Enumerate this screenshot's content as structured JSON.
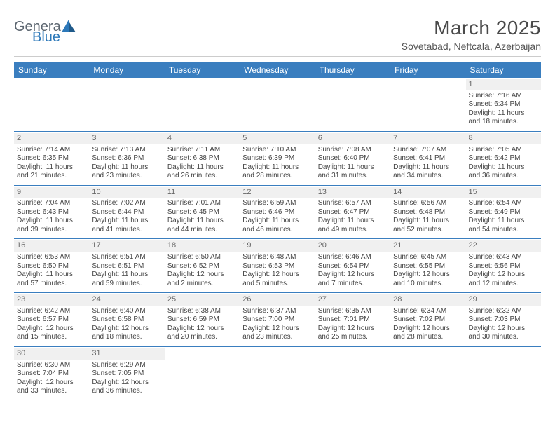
{
  "logo": {
    "part1": "Genera",
    "part2": "Blue"
  },
  "title": "March 2025",
  "subtitle": "Sovetabad, Neftcala, Azerbaijan",
  "colors": {
    "header_bg": "#3a7ebf",
    "header_text": "#ffffff",
    "row_border": "#3a7ebf",
    "daynum_bg": "#f0f0f0",
    "logo_gray": "#5c6670",
    "logo_blue": "#2c78b9"
  },
  "weekdays": [
    "Sunday",
    "Monday",
    "Tuesday",
    "Wednesday",
    "Thursday",
    "Friday",
    "Saturday"
  ],
  "weeks": [
    [
      {
        "n": "",
        "lines": []
      },
      {
        "n": "",
        "lines": []
      },
      {
        "n": "",
        "lines": []
      },
      {
        "n": "",
        "lines": []
      },
      {
        "n": "",
        "lines": []
      },
      {
        "n": "",
        "lines": []
      },
      {
        "n": "1",
        "lines": [
          "Sunrise: 7:16 AM",
          "Sunset: 6:34 PM",
          "Daylight: 11 hours",
          "and 18 minutes."
        ]
      }
    ],
    [
      {
        "n": "2",
        "lines": [
          "Sunrise: 7:14 AM",
          "Sunset: 6:35 PM",
          "Daylight: 11 hours",
          "and 21 minutes."
        ]
      },
      {
        "n": "3",
        "lines": [
          "Sunrise: 7:13 AM",
          "Sunset: 6:36 PM",
          "Daylight: 11 hours",
          "and 23 minutes."
        ]
      },
      {
        "n": "4",
        "lines": [
          "Sunrise: 7:11 AM",
          "Sunset: 6:38 PM",
          "Daylight: 11 hours",
          "and 26 minutes."
        ]
      },
      {
        "n": "5",
        "lines": [
          "Sunrise: 7:10 AM",
          "Sunset: 6:39 PM",
          "Daylight: 11 hours",
          "and 28 minutes."
        ]
      },
      {
        "n": "6",
        "lines": [
          "Sunrise: 7:08 AM",
          "Sunset: 6:40 PM",
          "Daylight: 11 hours",
          "and 31 minutes."
        ]
      },
      {
        "n": "7",
        "lines": [
          "Sunrise: 7:07 AM",
          "Sunset: 6:41 PM",
          "Daylight: 11 hours",
          "and 34 minutes."
        ]
      },
      {
        "n": "8",
        "lines": [
          "Sunrise: 7:05 AM",
          "Sunset: 6:42 PM",
          "Daylight: 11 hours",
          "and 36 minutes."
        ]
      }
    ],
    [
      {
        "n": "9",
        "lines": [
          "Sunrise: 7:04 AM",
          "Sunset: 6:43 PM",
          "Daylight: 11 hours",
          "and 39 minutes."
        ]
      },
      {
        "n": "10",
        "lines": [
          "Sunrise: 7:02 AM",
          "Sunset: 6:44 PM",
          "Daylight: 11 hours",
          "and 41 minutes."
        ]
      },
      {
        "n": "11",
        "lines": [
          "Sunrise: 7:01 AM",
          "Sunset: 6:45 PM",
          "Daylight: 11 hours",
          "and 44 minutes."
        ]
      },
      {
        "n": "12",
        "lines": [
          "Sunrise: 6:59 AM",
          "Sunset: 6:46 PM",
          "Daylight: 11 hours",
          "and 46 minutes."
        ]
      },
      {
        "n": "13",
        "lines": [
          "Sunrise: 6:57 AM",
          "Sunset: 6:47 PM",
          "Daylight: 11 hours",
          "and 49 minutes."
        ]
      },
      {
        "n": "14",
        "lines": [
          "Sunrise: 6:56 AM",
          "Sunset: 6:48 PM",
          "Daylight: 11 hours",
          "and 52 minutes."
        ]
      },
      {
        "n": "15",
        "lines": [
          "Sunrise: 6:54 AM",
          "Sunset: 6:49 PM",
          "Daylight: 11 hours",
          "and 54 minutes."
        ]
      }
    ],
    [
      {
        "n": "16",
        "lines": [
          "Sunrise: 6:53 AM",
          "Sunset: 6:50 PM",
          "Daylight: 11 hours",
          "and 57 minutes."
        ]
      },
      {
        "n": "17",
        "lines": [
          "Sunrise: 6:51 AM",
          "Sunset: 6:51 PM",
          "Daylight: 11 hours",
          "and 59 minutes."
        ]
      },
      {
        "n": "18",
        "lines": [
          "Sunrise: 6:50 AM",
          "Sunset: 6:52 PM",
          "Daylight: 12 hours",
          "and 2 minutes."
        ]
      },
      {
        "n": "19",
        "lines": [
          "Sunrise: 6:48 AM",
          "Sunset: 6:53 PM",
          "Daylight: 12 hours",
          "and 5 minutes."
        ]
      },
      {
        "n": "20",
        "lines": [
          "Sunrise: 6:46 AM",
          "Sunset: 6:54 PM",
          "Daylight: 12 hours",
          "and 7 minutes."
        ]
      },
      {
        "n": "21",
        "lines": [
          "Sunrise: 6:45 AM",
          "Sunset: 6:55 PM",
          "Daylight: 12 hours",
          "and 10 minutes."
        ]
      },
      {
        "n": "22",
        "lines": [
          "Sunrise: 6:43 AM",
          "Sunset: 6:56 PM",
          "Daylight: 12 hours",
          "and 12 minutes."
        ]
      }
    ],
    [
      {
        "n": "23",
        "lines": [
          "Sunrise: 6:42 AM",
          "Sunset: 6:57 PM",
          "Daylight: 12 hours",
          "and 15 minutes."
        ]
      },
      {
        "n": "24",
        "lines": [
          "Sunrise: 6:40 AM",
          "Sunset: 6:58 PM",
          "Daylight: 12 hours",
          "and 18 minutes."
        ]
      },
      {
        "n": "25",
        "lines": [
          "Sunrise: 6:38 AM",
          "Sunset: 6:59 PM",
          "Daylight: 12 hours",
          "and 20 minutes."
        ]
      },
      {
        "n": "26",
        "lines": [
          "Sunrise: 6:37 AM",
          "Sunset: 7:00 PM",
          "Daylight: 12 hours",
          "and 23 minutes."
        ]
      },
      {
        "n": "27",
        "lines": [
          "Sunrise: 6:35 AM",
          "Sunset: 7:01 PM",
          "Daylight: 12 hours",
          "and 25 minutes."
        ]
      },
      {
        "n": "28",
        "lines": [
          "Sunrise: 6:34 AM",
          "Sunset: 7:02 PM",
          "Daylight: 12 hours",
          "and 28 minutes."
        ]
      },
      {
        "n": "29",
        "lines": [
          "Sunrise: 6:32 AM",
          "Sunset: 7:03 PM",
          "Daylight: 12 hours",
          "and 30 minutes."
        ]
      }
    ],
    [
      {
        "n": "30",
        "lines": [
          "Sunrise: 6:30 AM",
          "Sunset: 7:04 PM",
          "Daylight: 12 hours",
          "and 33 minutes."
        ]
      },
      {
        "n": "31",
        "lines": [
          "Sunrise: 6:29 AM",
          "Sunset: 7:05 PM",
          "Daylight: 12 hours",
          "and 36 minutes."
        ]
      },
      {
        "n": "",
        "lines": []
      },
      {
        "n": "",
        "lines": []
      },
      {
        "n": "",
        "lines": []
      },
      {
        "n": "",
        "lines": []
      },
      {
        "n": "",
        "lines": []
      }
    ]
  ]
}
